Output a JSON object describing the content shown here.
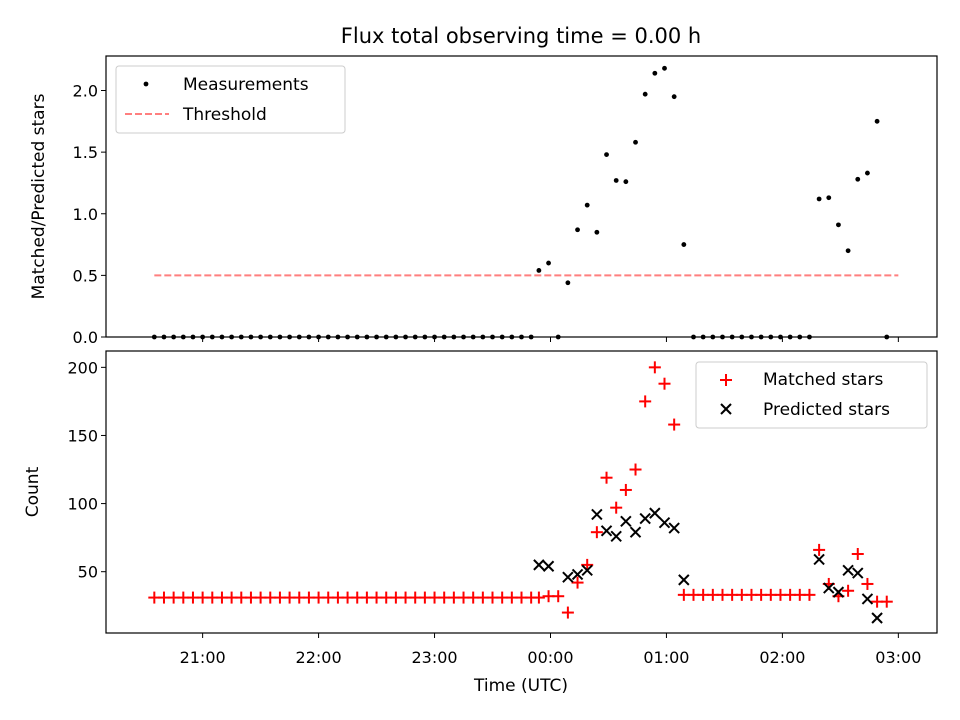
{
  "chart_data": [
    {
      "type": "scatter",
      "title": "Flux total observing time = 0.00 h",
      "ylabel": "Matched/Predicted stars",
      "xlabel": "",
      "x_unit": "minutes relative to 00:00 UTC",
      "ylim": [
        0,
        2.28
      ],
      "yticks": [
        0.0,
        0.5,
        1.0,
        1.5,
        2.0
      ],
      "ytick_labels": [
        "0.0",
        "0.5",
        "1.0",
        "1.5",
        "2.0"
      ],
      "legend": {
        "placement": "top-left",
        "entries": [
          {
            "label": "Measurements",
            "marker": "dot",
            "color": "#000000"
          },
          {
            "label": "Threshold",
            "marker": "dashed-line",
            "color": "#ff7f7f"
          }
        ]
      },
      "threshold": {
        "value": 0.5,
        "x_range": [
          -205,
          180
        ],
        "color": "#ff7f7f"
      },
      "series": [
        {
          "name": "Measurements",
          "color": "#000000",
          "points": [
            [
              -205,
              0
            ],
            [
              -200,
              0
            ],
            [
              -195,
              0
            ],
            [
              -190,
              0
            ],
            [
              -185,
              0
            ],
            [
              -180,
              0
            ],
            [
              -175,
              0
            ],
            [
              -170,
              0
            ],
            [
              -165,
              0
            ],
            [
              -160,
              0
            ],
            [
              -155,
              0
            ],
            [
              -150,
              0
            ],
            [
              -145,
              0
            ],
            [
              -140,
              0
            ],
            [
              -135,
              0
            ],
            [
              -130,
              0
            ],
            [
              -125,
              0
            ],
            [
              -120,
              0
            ],
            [
              -115,
              0
            ],
            [
              -110,
              0
            ],
            [
              -105,
              0
            ],
            [
              -100,
              0
            ],
            [
              -95,
              0
            ],
            [
              -90,
              0
            ],
            [
              -85,
              0
            ],
            [
              -80,
              0
            ],
            [
              -75,
              0
            ],
            [
              -70,
              0
            ],
            [
              -65,
              0
            ],
            [
              -60,
              0
            ],
            [
              -55,
              0
            ],
            [
              -50,
              0
            ],
            [
              -45,
              0
            ],
            [
              -40,
              0
            ],
            [
              -35,
              0
            ],
            [
              -30,
              0
            ],
            [
              -25,
              0
            ],
            [
              -20,
              0
            ],
            [
              -15,
              0
            ],
            [
              -10,
              0
            ],
            [
              -6,
              0.54
            ],
            [
              -1,
              0.6
            ],
            [
              4,
              0
            ],
            [
              9,
              0.44
            ],
            [
              14,
              0.87
            ],
            [
              19,
              1.07
            ],
            [
              24,
              0.85
            ],
            [
              29,
              1.48
            ],
            [
              34,
              1.27
            ],
            [
              39,
              1.26
            ],
            [
              44,
              1.58
            ],
            [
              49,
              1.97
            ],
            [
              54,
              2.14
            ],
            [
              59,
              2.18
            ],
            [
              64,
              1.95
            ],
            [
              69,
              0.75
            ],
            [
              74,
              0
            ],
            [
              79,
              0
            ],
            [
              84,
              0
            ],
            [
              89,
              0
            ],
            [
              94,
              0
            ],
            [
              99,
              0
            ],
            [
              104,
              0
            ],
            [
              109,
              0
            ],
            [
              114,
              0
            ],
            [
              119,
              0
            ],
            [
              124,
              0
            ],
            [
              129,
              0
            ],
            [
              134,
              0
            ],
            [
              139,
              1.12
            ],
            [
              144,
              1.13
            ],
            [
              149,
              0.91
            ],
            [
              154,
              0.7
            ],
            [
              159,
              1.28
            ],
            [
              164,
              1.33
            ],
            [
              169,
              1.75
            ],
            [
              174,
              0
            ]
          ]
        }
      ]
    },
    {
      "type": "scatter",
      "title": "",
      "ylabel": "Count",
      "xlabel": "Time (UTC)",
      "x_unit": "minutes relative to 00:00 UTC",
      "ylim": [
        5,
        212
      ],
      "yticks": [
        50,
        100,
        150,
        200
      ],
      "ytick_labels": [
        "50",
        "100",
        "150",
        "200"
      ],
      "xlim": [
        -230,
        200
      ],
      "xticks": [
        -180,
        -120,
        -60,
        0,
        60,
        120,
        180
      ],
      "xtick_labels": [
        "21:00",
        "22:00",
        "23:00",
        "00:00",
        "01:00",
        "02:00",
        "03:00"
      ],
      "legend": {
        "placement": "top-right",
        "entries": [
          {
            "label": "Matched stars",
            "marker": "plus",
            "color": "#ff0000"
          },
          {
            "label": "Predicted stars",
            "marker": "x",
            "color": "#000000"
          }
        ]
      },
      "series": [
        {
          "name": "Matched stars",
          "marker": "plus",
          "color": "#ff0000",
          "points": [
            [
              -205,
              31
            ],
            [
              -200,
              31
            ],
            [
              -195,
              31
            ],
            [
              -190,
              31
            ],
            [
              -185,
              31
            ],
            [
              -180,
              31
            ],
            [
              -175,
              31
            ],
            [
              -170,
              31
            ],
            [
              -165,
              31
            ],
            [
              -160,
              31
            ],
            [
              -155,
              31
            ],
            [
              -150,
              31
            ],
            [
              -145,
              31
            ],
            [
              -140,
              31
            ],
            [
              -135,
              31
            ],
            [
              -130,
              31
            ],
            [
              -125,
              31
            ],
            [
              -120,
              31
            ],
            [
              -115,
              31
            ],
            [
              -110,
              31
            ],
            [
              -105,
              31
            ],
            [
              -100,
              31
            ],
            [
              -95,
              31
            ],
            [
              -90,
              31
            ],
            [
              -85,
              31
            ],
            [
              -80,
              31
            ],
            [
              -75,
              31
            ],
            [
              -70,
              31
            ],
            [
              -65,
              31
            ],
            [
              -60,
              31
            ],
            [
              -55,
              31
            ],
            [
              -50,
              31
            ],
            [
              -45,
              31
            ],
            [
              -40,
              31
            ],
            [
              -35,
              31
            ],
            [
              -30,
              31
            ],
            [
              -25,
              31
            ],
            [
              -20,
              31
            ],
            [
              -15,
              31
            ],
            [
              -10,
              31
            ],
            [
              -6,
              31
            ],
            [
              -1,
              32
            ],
            [
              4,
              32
            ],
            [
              9,
              20
            ],
            [
              14,
              42
            ],
            [
              19,
              55
            ],
            [
              24,
              79
            ],
            [
              29,
              119
            ],
            [
              34,
              97
            ],
            [
              39,
              110
            ],
            [
              44,
              125
            ],
            [
              49,
              175
            ],
            [
              54,
              200
            ],
            [
              59,
              188
            ],
            [
              64,
              158
            ],
            [
              69,
              33
            ],
            [
              74,
              33
            ],
            [
              79,
              33
            ],
            [
              84,
              33
            ],
            [
              89,
              33
            ],
            [
              94,
              33
            ],
            [
              99,
              33
            ],
            [
              104,
              33
            ],
            [
              109,
              33
            ],
            [
              114,
              33
            ],
            [
              119,
              33
            ],
            [
              124,
              33
            ],
            [
              129,
              33
            ],
            [
              134,
              33
            ],
            [
              139,
              66
            ],
            [
              144,
              41
            ],
            [
              149,
              32
            ],
            [
              154,
              36
            ],
            [
              159,
              63
            ],
            [
              164,
              41
            ],
            [
              169,
              28
            ],
            [
              174,
              28
            ]
          ]
        },
        {
          "name": "Predicted stars",
          "marker": "x",
          "color": "#000000",
          "points": [
            [
              -6,
              55
            ],
            [
              -1,
              54
            ],
            [
              9,
              46
            ],
            [
              14,
              48
            ],
            [
              19,
              51
            ],
            [
              24,
              92
            ],
            [
              29,
              80
            ],
            [
              34,
              76
            ],
            [
              39,
              87
            ],
            [
              44,
              79
            ],
            [
              49,
              89
            ],
            [
              54,
              93
            ],
            [
              59,
              86
            ],
            [
              64,
              82
            ],
            [
              69,
              44
            ],
            [
              139,
              59
            ],
            [
              144,
              38
            ],
            [
              149,
              35
            ],
            [
              154,
              51
            ],
            [
              159,
              49
            ],
            [
              164,
              30
            ],
            [
              169,
              16
            ]
          ]
        }
      ]
    }
  ]
}
